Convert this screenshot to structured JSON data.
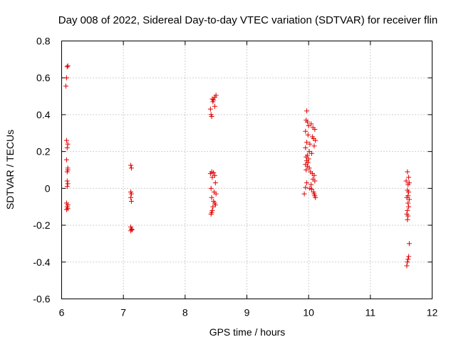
{
  "chart_data": {
    "type": "scatter",
    "title": "Day 008 of 2022, Sidereal Day-to-day VTEC variation (SDTVAR) for receiver flin",
    "xlabel": "GPS time / hours",
    "ylabel": "SDTVAR / TECUs",
    "xlim": [
      6,
      12
    ],
    "ylim": [
      -0.6,
      0.8
    ],
    "xticks": [
      "6",
      "7",
      "8",
      "9",
      "10",
      "11",
      "12"
    ],
    "yticks": [
      "-0.6",
      "-0.4",
      "-0.2",
      "0",
      "0.2",
      "0.4",
      "0.6",
      "0.8"
    ],
    "grid": true,
    "marker": "+",
    "color": "#e00000",
    "points": [
      [
        6.09,
        0.66
      ],
      [
        6.1,
        0.665
      ],
      [
        6.08,
        0.6
      ],
      [
        6.07,
        0.555
      ],
      [
        6.08,
        0.26
      ],
      [
        6.1,
        0.24
      ],
      [
        6.09,
        0.22
      ],
      [
        6.08,
        0.155
      ],
      [
        6.1,
        0.11
      ],
      [
        6.09,
        0.09
      ],
      [
        6.1,
        0.1
      ],
      [
        6.09,
        0.04
      ],
      [
        6.1,
        0.025
      ],
      [
        6.09,
        0.01
      ],
      [
        6.08,
        -0.08
      ],
      [
        6.1,
        -0.09
      ],
      [
        6.09,
        -0.1
      ],
      [
        6.1,
        -0.11
      ],
      [
        6.08,
        -0.115
      ],
      [
        7.12,
        0.125
      ],
      [
        7.13,
        0.11
      ],
      [
        7.12,
        -0.02
      ],
      [
        7.13,
        -0.03
      ],
      [
        7.12,
        -0.05
      ],
      [
        7.13,
        -0.07
      ],
      [
        7.12,
        -0.21
      ],
      [
        7.13,
        -0.22
      ],
      [
        7.12,
        -0.23
      ],
      [
        7.14,
        -0.225
      ],
      [
        8.44,
        0.485
      ],
      [
        8.46,
        0.48
      ],
      [
        8.48,
        0.495
      ],
      [
        8.5,
        0.505
      ],
      [
        8.45,
        0.47
      ],
      [
        8.48,
        0.445
      ],
      [
        8.41,
        0.43
      ],
      [
        8.42,
        0.4
      ],
      [
        8.43,
        0.39
      ],
      [
        8.41,
        0.08
      ],
      [
        8.43,
        0.09
      ],
      [
        8.46,
        0.085
      ],
      [
        8.48,
        0.07
      ],
      [
        8.44,
        0.06
      ],
      [
        8.49,
        0.03
      ],
      [
        8.42,
        0.0
      ],
      [
        8.47,
        -0.02
      ],
      [
        8.5,
        -0.03
      ],
      [
        8.43,
        -0.05
      ],
      [
        8.46,
        -0.07
      ],
      [
        8.48,
        -0.08
      ],
      [
        8.49,
        -0.09
      ],
      [
        8.45,
        -0.1
      ],
      [
        8.44,
        -0.12
      ],
      [
        8.43,
        -0.13
      ],
      [
        8.42,
        -0.14
      ],
      [
        9.97,
        0.42
      ],
      [
        9.96,
        0.37
      ],
      [
        9.98,
        0.36
      ],
      [
        10.0,
        0.34
      ],
      [
        10.04,
        0.35
      ],
      [
        10.07,
        0.33
      ],
      [
        10.1,
        0.32
      ],
      [
        9.95,
        0.31
      ],
      [
        9.99,
        0.29
      ],
      [
        10.06,
        0.28
      ],
      [
        10.08,
        0.27
      ],
      [
        10.11,
        0.26
      ],
      [
        9.97,
        0.25
      ],
      [
        10.02,
        0.24
      ],
      [
        10.09,
        0.23
      ],
      [
        9.95,
        0.22
      ],
      [
        10.01,
        0.2
      ],
      [
        10.05,
        0.19
      ],
      [
        9.98,
        0.18
      ],
      [
        9.96,
        0.17
      ],
      [
        10.0,
        0.16
      ],
      [
        9.97,
        0.15
      ],
      [
        9.99,
        0.14
      ],
      [
        9.95,
        0.13
      ],
      [
        9.98,
        0.12
      ],
      [
        10.01,
        0.11
      ],
      [
        9.96,
        0.1
      ],
      [
        10.03,
        0.09
      ],
      [
        10.06,
        0.08
      ],
      [
        10.09,
        0.07
      ],
      [
        10.07,
        0.05
      ],
      [
        10.1,
        0.04
      ],
      [
        9.97,
        0.03
      ],
      [
        10.04,
        0.02
      ],
      [
        9.95,
        0.005
      ],
      [
        10.02,
        0.0
      ],
      [
        10.05,
        -0.005
      ],
      [
        10.08,
        -0.02
      ],
      [
        10.09,
        -0.03
      ],
      [
        9.93,
        -0.03
      ],
      [
        10.1,
        -0.04
      ],
      [
        10.11,
        -0.05
      ],
      [
        11.6,
        0.09
      ],
      [
        11.62,
        0.06
      ],
      [
        11.58,
        0.04
      ],
      [
        11.63,
        0.03
      ],
      [
        11.61,
        0.02
      ],
      [
        11.6,
        -0.01
      ],
      [
        11.62,
        -0.02
      ],
      [
        11.61,
        -0.04
      ],
      [
        11.59,
        -0.05
      ],
      [
        11.63,
        -0.06
      ],
      [
        11.61,
        -0.08
      ],
      [
        11.62,
        -0.1
      ],
      [
        11.6,
        -0.12
      ],
      [
        11.59,
        -0.14
      ],
      [
        11.61,
        -0.15
      ],
      [
        11.6,
        -0.17
      ],
      [
        11.63,
        -0.3
      ],
      [
        11.62,
        -0.37
      ],
      [
        11.61,
        -0.385
      ],
      [
        11.6,
        -0.4
      ],
      [
        11.59,
        -0.42
      ]
    ]
  }
}
